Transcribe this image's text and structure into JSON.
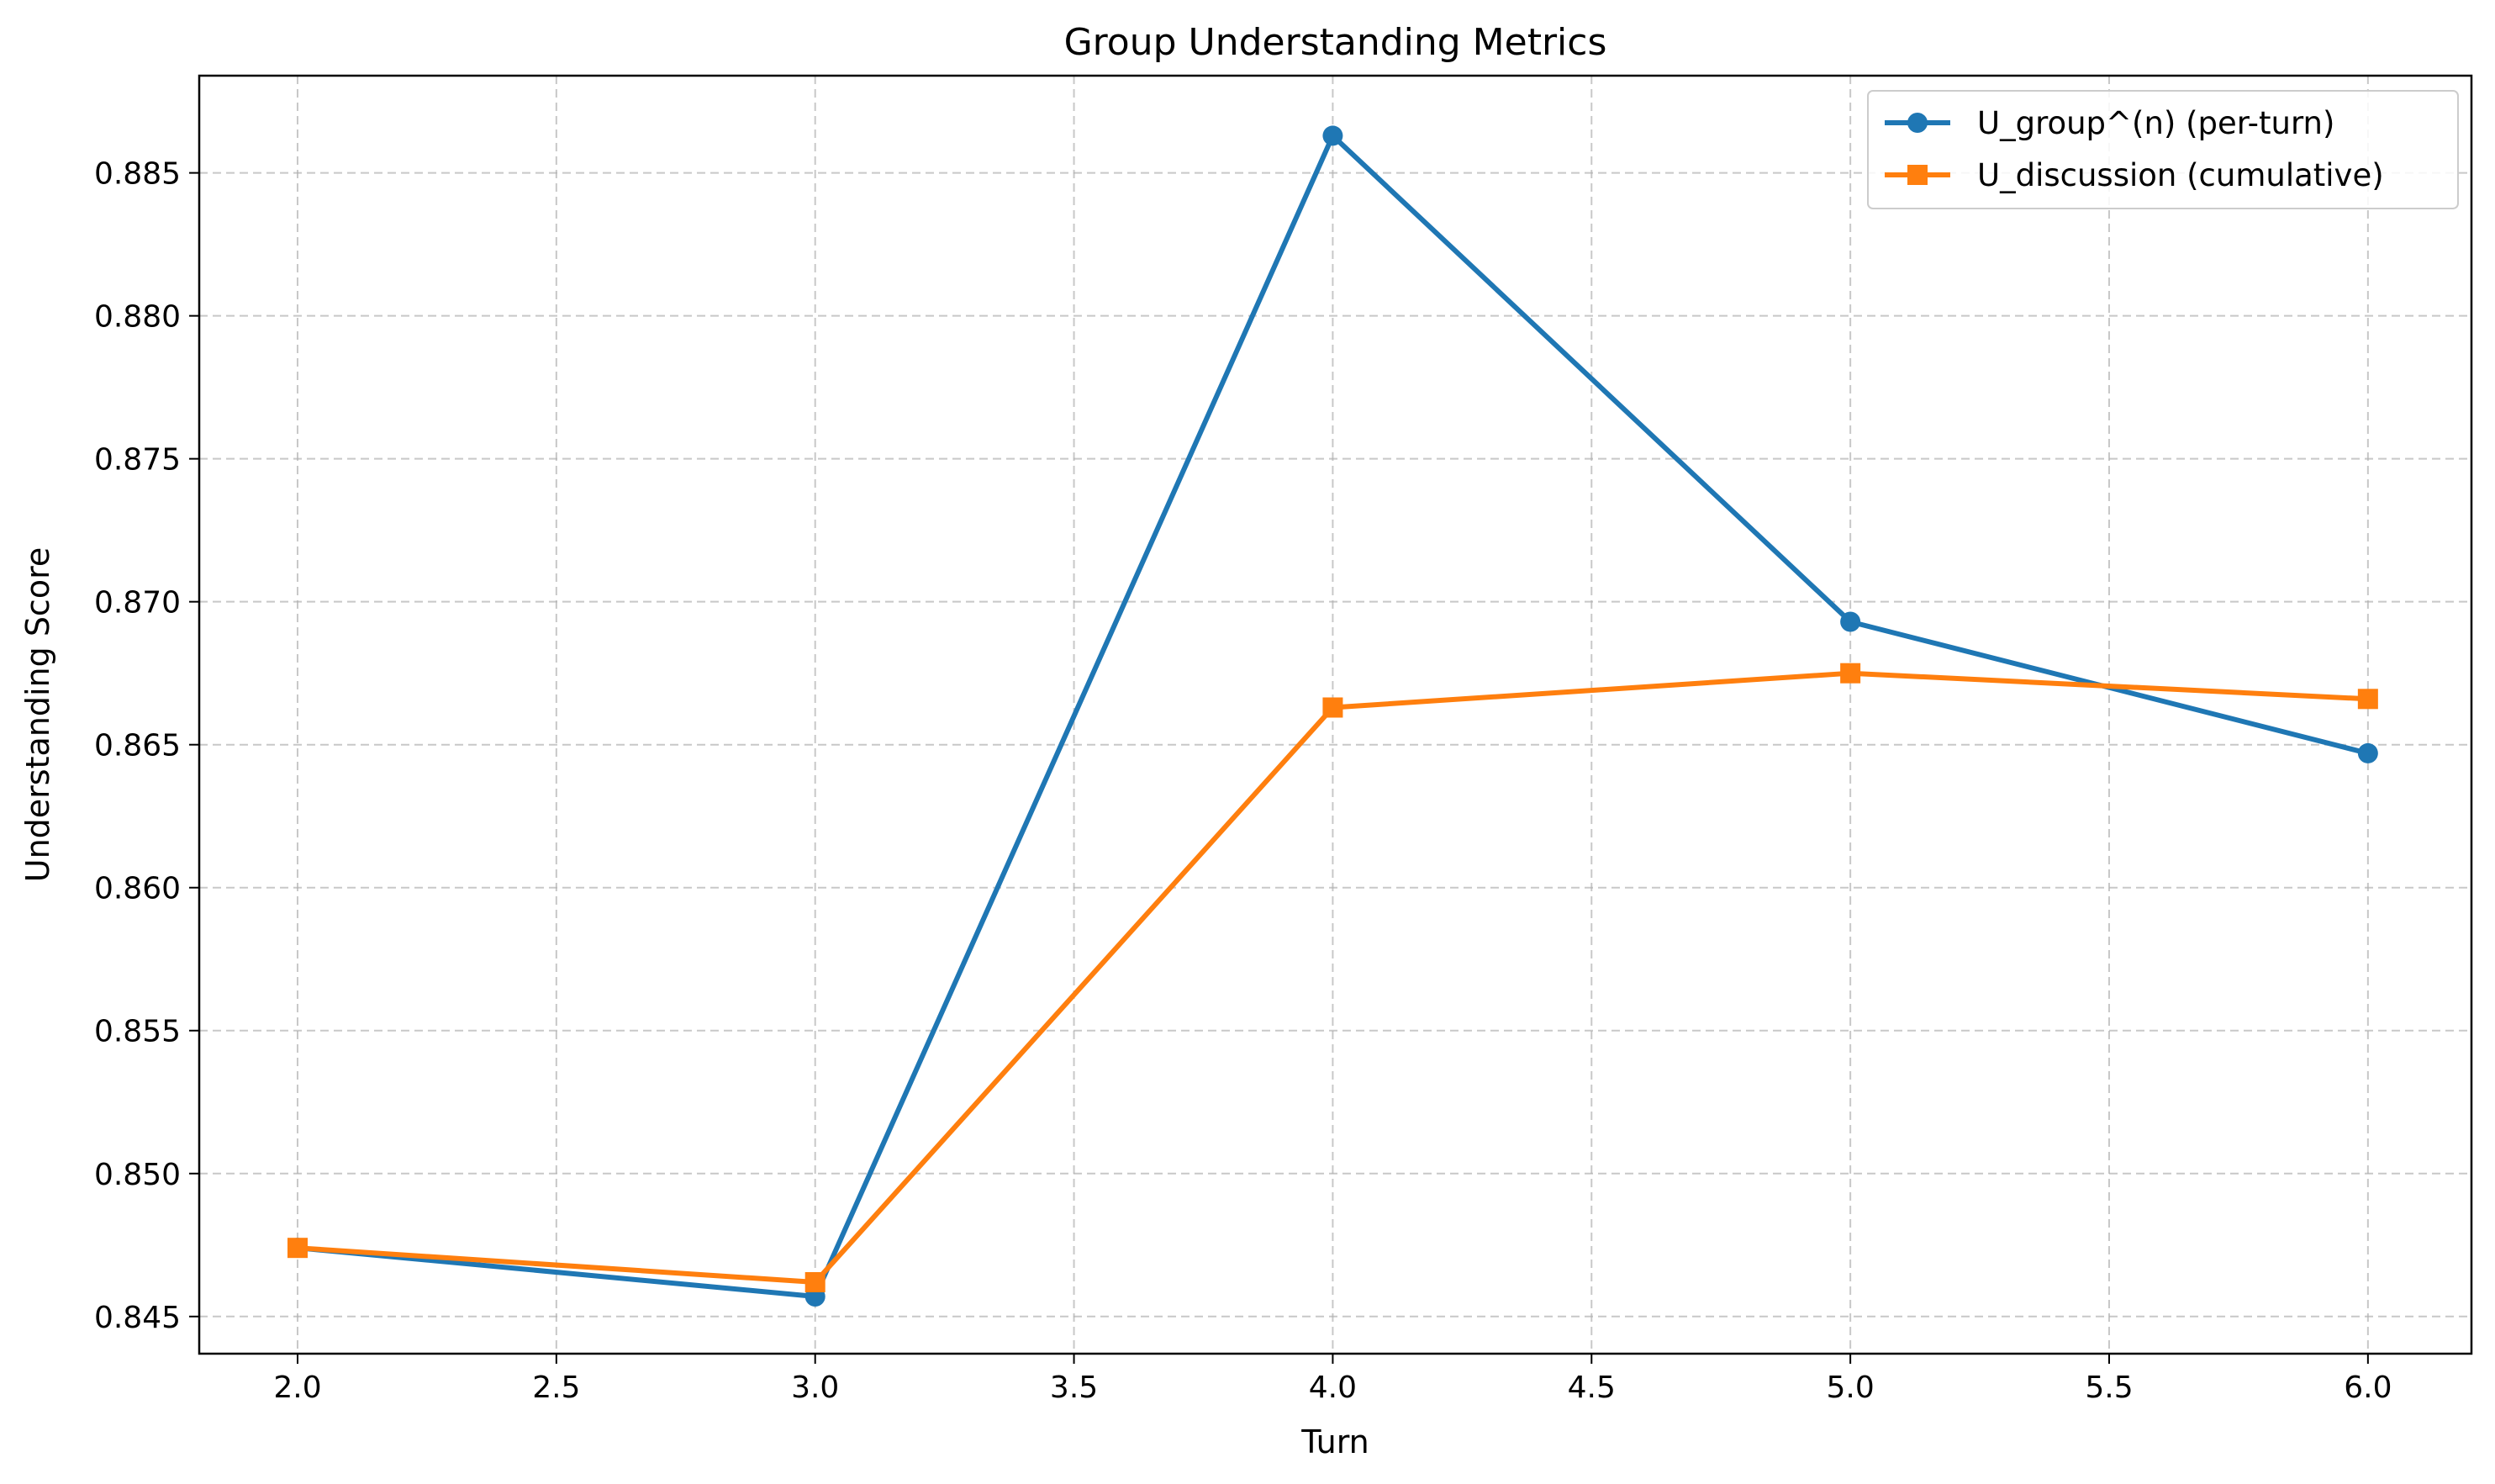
{
  "chart_data": {
    "type": "line",
    "title": "Group Understanding Metrics",
    "xlabel": "Turn",
    "ylabel": "Understanding Score",
    "xlim": [
      1.81,
      6.2
    ],
    "ylim": [
      0.8437,
      0.8884
    ],
    "xticks": [
      2.0,
      2.5,
      3.0,
      3.5,
      4.0,
      4.5,
      5.0,
      5.5,
      6.0
    ],
    "xtick_labels": [
      "2.0",
      "2.5",
      "3.0",
      "3.5",
      "4.0",
      "4.5",
      "5.0",
      "5.5",
      "6.0"
    ],
    "yticks": [
      0.845,
      0.85,
      0.855,
      0.86,
      0.865,
      0.87,
      0.875,
      0.88,
      0.885
    ],
    "ytick_labels": [
      "0.845",
      "0.850",
      "0.855",
      "0.860",
      "0.865",
      "0.870",
      "0.875",
      "0.880",
      "0.885"
    ],
    "grid": true,
    "legend_position": "top-right",
    "series": [
      {
        "name": "U_group^(n) (per-turn)",
        "color": "#1f77b4",
        "marker": "circle",
        "x": [
          2.0,
          3.0,
          4.0,
          5.0,
          6.0
        ],
        "y": [
          0.8474,
          0.8457,
          0.8863,
          0.8693,
          0.8647
        ]
      },
      {
        "name": "U_discussion (cumulative)",
        "color": "#ff7f0e",
        "marker": "square",
        "x": [
          2.0,
          3.0,
          4.0,
          5.0,
          6.0
        ],
        "y": [
          0.8474,
          0.8462,
          0.8663,
          0.8675,
          0.8666
        ]
      }
    ]
  }
}
